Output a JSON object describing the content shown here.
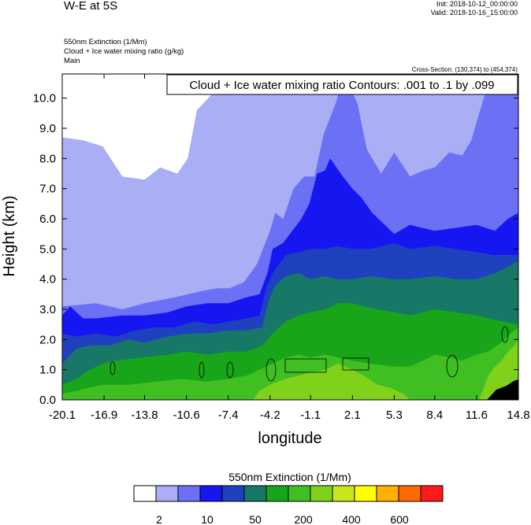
{
  "header": {
    "title": "W-E at 5S",
    "init": "Init: 2018-10-12_00:00:00",
    "valid": "Valid: 2018-10-16_15:00:00",
    "subtitle1": "550nm Extinction   (1/Mm)",
    "subtitle2": "Cloud + Ice water mixing ratio   (g/kg)",
    "subtitle3": "Main",
    "cross_section": "Cross-Section: (130,374) to (454,374)"
  },
  "chart_data": {
    "type": "heatmap",
    "title": "550nm Extinction   (1/Mm)",
    "xlabel": "longitude",
    "ylabel": "Height (km)",
    "xlim": [
      -20.1,
      14.8
    ],
    "ylim": [
      0.0,
      10.8
    ],
    "x_ticks": [
      "-20.1",
      "-16.9",
      "-13.8",
      "-10.6",
      "-7.4",
      "-4.2",
      "-1.1",
      "2.1",
      "5.3",
      "8.4",
      "11.6",
      "14.8"
    ],
    "y_ticks": [
      "0.0",
      "1.0",
      "2.0",
      "3.0",
      "4.0",
      "5.0",
      "6.0",
      "7.0",
      "8.0",
      "9.0",
      "10.0"
    ],
    "contour_label": "Cloud + Ice water mixing ratio Contours: .001 to .1 by .099",
    "colorbar": {
      "title": "550nm Extinction  (1/Mm)",
      "colors": [
        "#ffffff",
        "#a9aef5",
        "#6b70f5",
        "#1616f0",
        "#1f40bf",
        "#177868",
        "#19a519",
        "#40bf23",
        "#7fd11a",
        "#c8e619",
        "#ffff00",
        "#ffb000",
        "#ff6a00",
        "#ff1a1a"
      ],
      "labels": [
        "2",
        "10",
        "50",
        "200",
        "400",
        "600"
      ]
    },
    "bands": [
      {
        "color": "#a9aef5",
        "points": [
          [
            -20.1,
            0
          ],
          [
            -20.1,
            8.7
          ],
          [
            -18.5,
            8.6
          ],
          [
            -17.0,
            8.4
          ],
          [
            -15.5,
            7.4
          ],
          [
            -13.8,
            7.3
          ],
          [
            -12.6,
            7.7
          ],
          [
            -11.3,
            7.5
          ],
          [
            -10.5,
            8.0
          ],
          [
            -9.8,
            9.6
          ],
          [
            -8.5,
            10.2
          ],
          [
            -7.0,
            10.4
          ],
          [
            -5.5,
            10.2
          ],
          [
            -4.2,
            10.4
          ],
          [
            -2.5,
            10.5
          ],
          [
            -1.1,
            10.8
          ],
          [
            14.8,
            10.8
          ],
          [
            14.8,
            0
          ]
        ]
      },
      {
        "color": "#6b70f5",
        "points": [
          [
            -20.1,
            0
          ],
          [
            -20.1,
            3.1
          ],
          [
            -17.5,
            3.2
          ],
          [
            -15.5,
            3.0
          ],
          [
            -13.8,
            3.2
          ],
          [
            -11.5,
            3.4
          ],
          [
            -9.5,
            3.6
          ],
          [
            -8.3,
            3.7
          ],
          [
            -7.3,
            3.7
          ],
          [
            -6.2,
            3.9
          ],
          [
            -5.2,
            4.5
          ],
          [
            -4.2,
            5.6
          ],
          [
            -3.8,
            6.2
          ],
          [
            -3.2,
            6.0
          ],
          [
            -2.4,
            7.0
          ],
          [
            -1.6,
            7.4
          ],
          [
            -0.8,
            7.4
          ],
          [
            -0.1,
            8.8
          ],
          [
            0.8,
            9.8
          ],
          [
            1.5,
            10.8
          ],
          [
            2.5,
            9.8
          ],
          [
            3.2,
            8.3
          ],
          [
            4.3,
            7.5
          ],
          [
            5.3,
            8.2
          ],
          [
            6.5,
            7.4
          ],
          [
            7.5,
            7.6
          ],
          [
            8.4,
            7.7
          ],
          [
            9.5,
            8.2
          ],
          [
            10.5,
            8.1
          ],
          [
            11.2,
            8.6
          ],
          [
            11.6,
            9.2
          ],
          [
            12.5,
            10.5
          ],
          [
            13.5,
            10.3
          ],
          [
            14.5,
            10.4
          ],
          [
            14.8,
            10.4
          ],
          [
            14.8,
            0
          ]
        ]
      },
      {
        "color": "#1616f0",
        "points": [
          [
            -20.1,
            0
          ],
          [
            -20.1,
            2.8
          ],
          [
            -19.5,
            3.1
          ],
          [
            -18.5,
            2.7
          ],
          [
            -17.5,
            2.7
          ],
          [
            -15.5,
            2.8
          ],
          [
            -13.8,
            2.8
          ],
          [
            -12.0,
            2.9
          ],
          [
            -10.6,
            3.1
          ],
          [
            -9.0,
            3.2
          ],
          [
            -7.4,
            3.2
          ],
          [
            -6.0,
            3.4
          ],
          [
            -5.0,
            3.5
          ],
          [
            -4.4,
            4.2
          ],
          [
            -4.0,
            5.0
          ],
          [
            -3.2,
            5.2
          ],
          [
            -2.5,
            5.6
          ],
          [
            -1.8,
            6.0
          ],
          [
            -1.2,
            6.5
          ],
          [
            -0.6,
            7.5
          ],
          [
            0.0,
            7.6
          ],
          [
            0.4,
            8.0
          ],
          [
            1.2,
            7.5
          ],
          [
            2.1,
            7.0
          ],
          [
            2.8,
            6.7
          ],
          [
            3.6,
            6.2
          ],
          [
            5.3,
            5.5
          ],
          [
            6.5,
            5.8
          ],
          [
            8.4,
            5.6
          ],
          [
            10.0,
            5.7
          ],
          [
            11.6,
            5.8
          ],
          [
            13.0,
            5.6
          ],
          [
            14.0,
            6.0
          ],
          [
            14.8,
            6.2
          ],
          [
            14.8,
            0
          ]
        ]
      },
      {
        "color": "#1f40bf",
        "points": [
          [
            -20.1,
            0
          ],
          [
            -20.1,
            2.2
          ],
          [
            -19.0,
            2.1
          ],
          [
            -17.5,
            2.2
          ],
          [
            -16.0,
            2.1
          ],
          [
            -14.5,
            2.3
          ],
          [
            -13.0,
            2.4
          ],
          [
            -11.5,
            2.4
          ],
          [
            -10.0,
            2.6
          ],
          [
            -8.5,
            2.5
          ],
          [
            -7.4,
            2.6
          ],
          [
            -6.0,
            2.7
          ],
          [
            -5.0,
            2.8
          ],
          [
            -4.5,
            3.7
          ],
          [
            -4.0,
            4.2
          ],
          [
            -3.0,
            4.8
          ],
          [
            -2.0,
            4.9
          ],
          [
            -1.1,
            5.0
          ],
          [
            0.0,
            5.0
          ],
          [
            1.0,
            5.1
          ],
          [
            2.1,
            5.0
          ],
          [
            3.5,
            5.0
          ],
          [
            5.3,
            5.2
          ],
          [
            6.5,
            5.0
          ],
          [
            8.4,
            5.1
          ],
          [
            10.0,
            5.0
          ],
          [
            11.6,
            4.9
          ],
          [
            13.0,
            4.8
          ],
          [
            14.8,
            4.8
          ],
          [
            14.8,
            0
          ]
        ]
      },
      {
        "color": "#177868",
        "points": [
          [
            -20.1,
            0
          ],
          [
            -20.1,
            1.2
          ],
          [
            -19.0,
            1.7
          ],
          [
            -18.0,
            1.8
          ],
          [
            -16.5,
            1.8
          ],
          [
            -15.0,
            2.0
          ],
          [
            -13.8,
            1.9
          ],
          [
            -12.0,
            2.1
          ],
          [
            -10.6,
            2.2
          ],
          [
            -9.0,
            2.2
          ],
          [
            -7.4,
            2.3
          ],
          [
            -6.0,
            2.3
          ],
          [
            -4.8,
            2.4
          ],
          [
            -4.3,
            3.3
          ],
          [
            -3.8,
            3.8
          ],
          [
            -3.0,
            4.1
          ],
          [
            -2.0,
            4.2
          ],
          [
            -1.1,
            4.0
          ],
          [
            0.0,
            4.1
          ],
          [
            1.0,
            4.0
          ],
          [
            2.1,
            4.0
          ],
          [
            3.5,
            4.1
          ],
          [
            5.3,
            4.0
          ],
          [
            6.5,
            4.0
          ],
          [
            8.4,
            4.1
          ],
          [
            10.0,
            4.0
          ],
          [
            11.6,
            4.0
          ],
          [
            13.0,
            4.2
          ],
          [
            14.8,
            4.6
          ],
          [
            14.8,
            0
          ]
        ]
      },
      {
        "color": "#19a519",
        "points": [
          [
            -20.1,
            0
          ],
          [
            -20.1,
            0.5
          ],
          [
            -19.0,
            0.7
          ],
          [
            -18.0,
            1.0
          ],
          [
            -17.0,
            1.2
          ],
          [
            -16.0,
            1.3
          ],
          [
            -14.0,
            1.4
          ],
          [
            -12.0,
            1.5
          ],
          [
            -10.6,
            1.6
          ],
          [
            -9.0,
            1.5
          ],
          [
            -7.4,
            1.6
          ],
          [
            -6.0,
            1.6
          ],
          [
            -4.8,
            1.8
          ],
          [
            -4.0,
            2.2
          ],
          [
            -3.0,
            2.6
          ],
          [
            -2.0,
            2.8
          ],
          [
            -1.1,
            2.9
          ],
          [
            0.0,
            3.0
          ],
          [
            1.0,
            3.2
          ],
          [
            2.1,
            3.2
          ],
          [
            3.0,
            3.1
          ],
          [
            4.0,
            3.0
          ],
          [
            5.3,
            2.9
          ],
          [
            6.5,
            2.8
          ],
          [
            8.4,
            3.0
          ],
          [
            10.0,
            2.9
          ],
          [
            11.6,
            2.8
          ],
          [
            12.5,
            2.7
          ],
          [
            13.5,
            2.6
          ],
          [
            14.8,
            2.5
          ],
          [
            14.8,
            0
          ]
        ]
      },
      {
        "color": "#40bf23",
        "points": [
          [
            -20.1,
            0
          ],
          [
            -20.1,
            0.2
          ],
          [
            -19.0,
            0.3
          ],
          [
            -17.0,
            0.5
          ],
          [
            -15.0,
            0.5
          ],
          [
            -13.0,
            0.6
          ],
          [
            -11.0,
            0.7
          ],
          [
            -9.0,
            0.6
          ],
          [
            -7.4,
            0.7
          ],
          [
            -6.0,
            0.8
          ],
          [
            -5.0,
            1.0
          ],
          [
            -4.0,
            1.2
          ],
          [
            -3.0,
            1.4
          ],
          [
            -2.0,
            1.5
          ],
          [
            -1.1,
            1.4
          ],
          [
            0.0,
            1.5
          ],
          [
            1.0,
            1.4
          ],
          [
            2.1,
            1.3
          ],
          [
            3.5,
            1.2
          ],
          [
            5.3,
            1.1
          ],
          [
            6.5,
            1.1
          ],
          [
            7.5,
            1.3
          ],
          [
            8.4,
            1.5
          ],
          [
            9.5,
            1.4
          ],
          [
            10.5,
            1.3
          ],
          [
            11.6,
            1.5
          ],
          [
            12.5,
            1.6
          ],
          [
            13.5,
            1.9
          ],
          [
            14.2,
            2.2
          ],
          [
            14.8,
            2.4
          ],
          [
            14.8,
            0
          ]
        ]
      },
      {
        "color": "#7fd11a",
        "points": [
          [
            -5.5,
            0
          ],
          [
            -5.0,
            0.3
          ],
          [
            -4.2,
            0.5
          ],
          [
            -3.0,
            0.7
          ],
          [
            -2.0,
            0.8
          ],
          [
            -1.1,
            0.9
          ],
          [
            0.0,
            1.0
          ],
          [
            1.0,
            1.2
          ],
          [
            2.1,
            1.0
          ],
          [
            3.0,
            0.8
          ],
          [
            4.0,
            0.5
          ],
          [
            5.0,
            0.4
          ],
          [
            6.0,
            0.2
          ],
          [
            6.5,
            0
          ]
        ]
      },
      {
        "color": "#7fd11a",
        "points": [
          [
            11.8,
            0
          ],
          [
            12.5,
            0.8
          ],
          [
            13.0,
            1.1
          ],
          [
            13.5,
            1.3
          ],
          [
            14.0,
            1.6
          ],
          [
            14.5,
            1.8
          ],
          [
            14.8,
            2.0
          ],
          [
            14.8,
            0
          ]
        ]
      }
    ]
  }
}
